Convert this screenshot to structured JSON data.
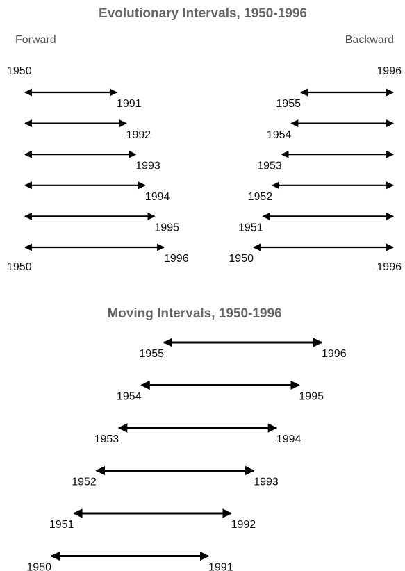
{
  "evolutionary": {
    "title": "Evolutionary Intervals, 1950-1996",
    "forward": {
      "label": "Forward",
      "start_top": "1950",
      "start_bottom": "1950",
      "ends": [
        "1991",
        "1992",
        "1993",
        "1994",
        "1995",
        "1996"
      ]
    },
    "backward": {
      "label": "Backward",
      "end_top": "1996",
      "end_bottom": "1996",
      "starts": [
        "1955",
        "1954",
        "1953",
        "1952",
        "1951",
        "1950"
      ]
    }
  },
  "moving": {
    "title": "Moving Intervals, 1950-1996",
    "intervals": [
      {
        "start": "1955",
        "end": "1996"
      },
      {
        "start": "1954",
        "end": "1995"
      },
      {
        "start": "1953",
        "end": "1994"
      },
      {
        "start": "1952",
        "end": "1993"
      },
      {
        "start": "1951",
        "end": "1992"
      },
      {
        "start": "1950",
        "end": "1991"
      }
    ]
  }
}
